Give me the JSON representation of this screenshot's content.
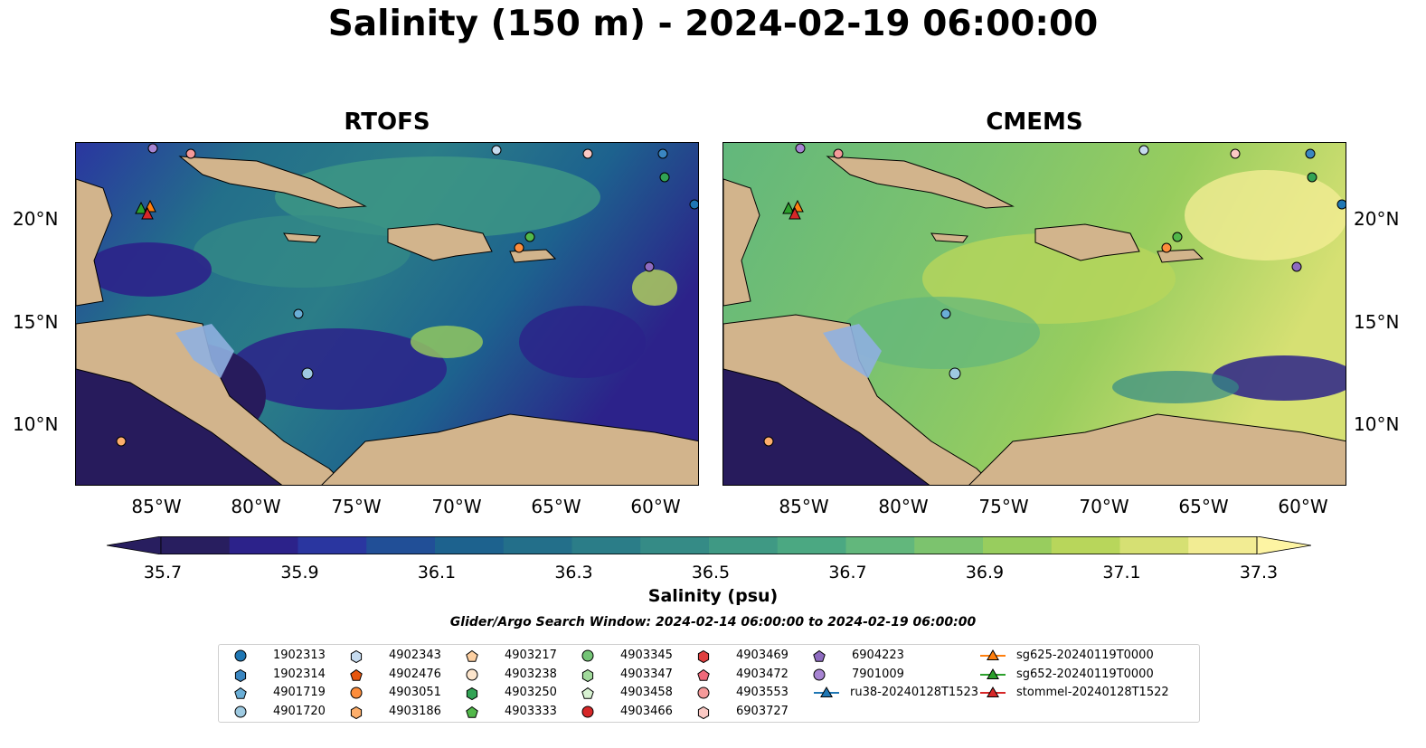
{
  "title": "Salinity (150 m) - 2024-02-19 06:00:00",
  "panels": [
    {
      "title": "RTOFS"
    },
    {
      "title": "CMEMS"
    }
  ],
  "x_ticks": [
    "85°W",
    "80°W",
    "75°W",
    "70°W",
    "65°W",
    "60°W"
  ],
  "y_ticks": [
    "20°N",
    "15°N",
    "10°N"
  ],
  "colorbar": {
    "label": "Salinity (psu)",
    "ticks": [
      "35.7",
      "35.9",
      "36.1",
      "36.3",
      "36.5",
      "36.7",
      "36.9",
      "37.1",
      "37.3"
    ],
    "colors": [
      "#281e5f",
      "#2c228a",
      "#2a36a0",
      "#214f97",
      "#1d628e",
      "#236f8a",
      "#2b7d88",
      "#358b86",
      "#3f9984",
      "#4ba882",
      "#62b77c",
      "#7cc36e",
      "#98cd5e",
      "#b8d65b",
      "#d6e073",
      "#f2ec93"
    ]
  },
  "search_window": "Glider/Argo Search Window: 2024-02-14 06:00:00 to 2024-02-19 06:00:00",
  "legend": [
    {
      "label": "1902313",
      "marker": "circle",
      "color": "#1f77b4"
    },
    {
      "label": "1902314",
      "marker": "hexagon",
      "color": "#3a86c1"
    },
    {
      "label": "4901719",
      "marker": "pentagon",
      "color": "#6aaed6"
    },
    {
      "label": "4901720",
      "marker": "circle",
      "color": "#9ecae1"
    },
    {
      "label": "4902343",
      "marker": "hexagon",
      "color": "#c6dbef"
    },
    {
      "label": "4902476",
      "marker": "pentagon",
      "color": "#e6550d"
    },
    {
      "label": "4903051",
      "marker": "circle",
      "color": "#fd8d3c"
    },
    {
      "label": "4903186",
      "marker": "hexagon",
      "color": "#fdae6b"
    },
    {
      "label": "4903217",
      "marker": "pentagon",
      "color": "#fdd0a2"
    },
    {
      "label": "4903238",
      "marker": "circle",
      "color": "#fde5cc"
    },
    {
      "label": "4903250",
      "marker": "hexagon",
      "color": "#31a354"
    },
    {
      "label": "4903333",
      "marker": "pentagon",
      "color": "#52b84a"
    },
    {
      "label": "4903345",
      "marker": "circle",
      "color": "#74c476"
    },
    {
      "label": "4903347",
      "marker": "hexagon",
      "color": "#a1d99b"
    },
    {
      "label": "4903458",
      "marker": "pentagon",
      "color": "#d8f2d2"
    },
    {
      "label": "4903466",
      "marker": "circle",
      "color": "#d62728"
    },
    {
      "label": "4903469",
      "marker": "hexagon",
      "color": "#e04040"
    },
    {
      "label": "4903472",
      "marker": "pentagon",
      "color": "#f0697a"
    },
    {
      "label": "4903553",
      "marker": "circle",
      "color": "#f59a9a"
    },
    {
      "label": "6903727",
      "marker": "hexagon",
      "color": "#fbc9c4"
    },
    {
      "label": "6904223",
      "marker": "pentagon",
      "color": "#8e6bc0"
    },
    {
      "label": "7901009",
      "marker": "circle",
      "color": "#a784d2"
    },
    {
      "label": "ru38-20240128T1523",
      "marker": "triangle-line",
      "color": "#1f77b4"
    },
    {
      "label": "sg625-20240119T0000",
      "marker": "triangle-line",
      "color": "#ff7f0e"
    },
    {
      "label": "sg652-20240119T0000",
      "marker": "triangle-line",
      "color": "#2ca02c"
    },
    {
      "label": "stommel-20240128T1522",
      "marker": "triangle-line",
      "color": "#d62728"
    }
  ],
  "colors": {
    "land": "#d2b48c",
    "shelf": "#8fb0e0",
    "deep_pacific": "#271b5c"
  }
}
